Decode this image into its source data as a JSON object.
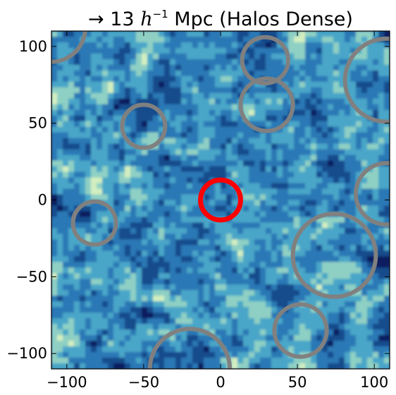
{
  "chart_data": {
    "type": "heatmap",
    "title_prefix": "→ 13 ",
    "title_math": "h",
    "title_exp": "−1",
    "title_suffix": " Mpc (Halos Dense)",
    "xlim": [
      -110,
      110
    ],
    "ylim": [
      -110,
      110
    ],
    "x_ticks": [
      -100,
      -50,
      0,
      50,
      100
    ],
    "y_ticks": [
      -100,
      -50,
      0,
      50,
      100
    ],
    "x_tick_labels": [
      "−100",
      "−50",
      "0",
      "50",
      "100"
    ],
    "y_tick_labels": [
      "−100",
      "−50",
      "0",
      "50",
      "100"
    ],
    "grid": false,
    "colormap": [
      "#0a1f5e",
      "#134b8c",
      "#2b78b5",
      "#4aa6c8",
      "#8fd0c4",
      "#d3efc0"
    ],
    "circles": [
      {
        "x": 0,
        "y": 0,
        "r": 13,
        "color": "#ff0000",
        "highlight": true
      },
      {
        "x": -50,
        "y": 48,
        "r": 14,
        "color": "#808080"
      },
      {
        "x": 29,
        "y": 91,
        "r": 15,
        "color": "#808080"
      },
      {
        "x": 30,
        "y": 62,
        "r": 17,
        "color": "#808080"
      },
      {
        "x": -82,
        "y": -15,
        "r": 14,
        "color": "#808080"
      },
      {
        "x": 108,
        "y": 78,
        "r": 27,
        "color": "#808080"
      },
      {
        "x": 108,
        "y": 4,
        "r": 20,
        "color": "#808080"
      },
      {
        "x": 74,
        "y": -36,
        "r": 27,
        "color": "#808080"
      },
      {
        "x": 52,
        "y": -85,
        "r": 17,
        "color": "#808080"
      },
      {
        "x": -20,
        "y": -110,
        "r": 26,
        "color": "#808080"
      },
      {
        "x": -110,
        "y": 112,
        "r": 22,
        "color": "#808080"
      }
    ]
  }
}
